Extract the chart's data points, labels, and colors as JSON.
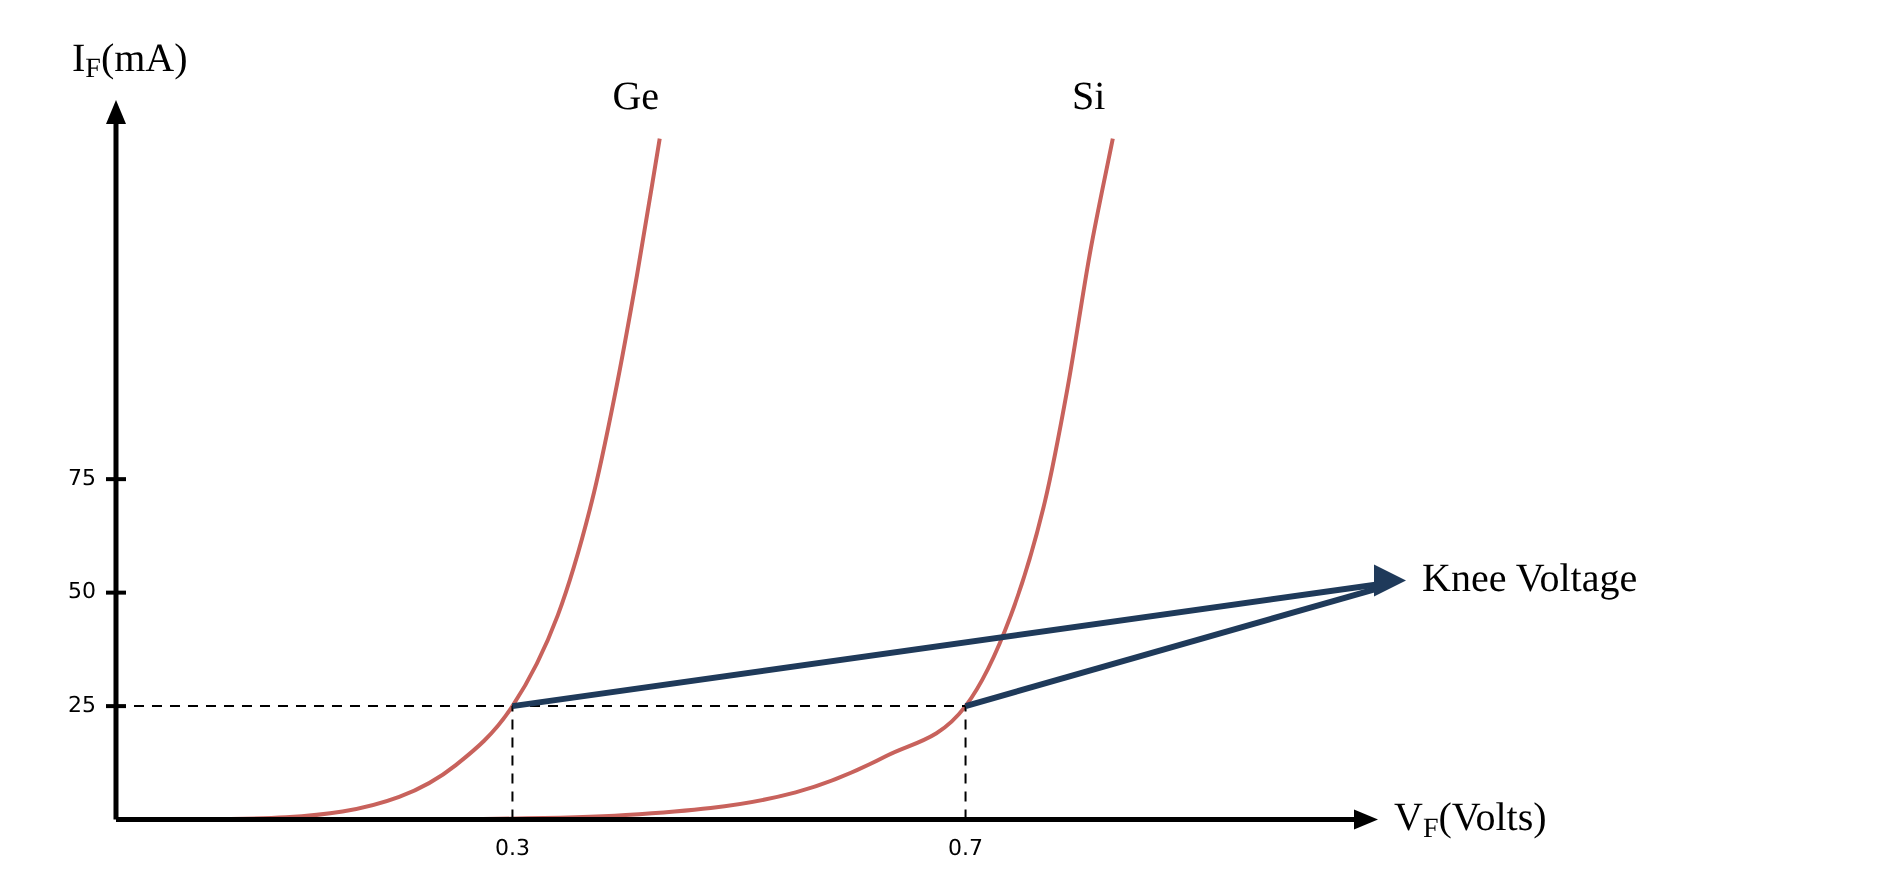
{
  "chart_data": {
    "type": "line",
    "xlabel": "V$_{F}$(Volts)",
    "ylabel": "I$_{F}$(mA)",
    "series": [
      {
        "name": "Ge",
        "color": "#c8625c",
        "x": [
          0,
          0.1,
          0.2,
          0.25,
          0.3,
          0.34,
          0.37,
          0.39,
          0.41,
          0.43
        ],
        "values": [
          0,
          0.5,
          5,
          12,
          25,
          45,
          70,
          93,
          120,
          150
        ]
      },
      {
        "name": "Si",
        "color": "#c8625c",
        "x": [
          0.22,
          0.4,
          0.55,
          0.63,
          0.7,
          0.74,
          0.77,
          0.79,
          0.81,
          0.83
        ],
        "values": [
          0,
          1,
          6,
          14,
          25,
          45,
          70,
          95,
          125,
          150
        ]
      }
    ],
    "xlim": [
      -0.05,
      1.05
    ],
    "ylim": [
      0,
      155
    ],
    "xticks": [
      0.3,
      0.7
    ],
    "yticks": [
      25,
      50,
      75
    ],
    "ref_lines": [
      {
        "axis": "y",
        "value": 25,
        "line_style": "dashed"
      },
      {
        "axis": "x",
        "value": 0.3,
        "line_style": "dashed"
      },
      {
        "axis": "x",
        "value": 0.7,
        "line_style": "dashed"
      }
    ],
    "annotations": [
      {
        "text": "Knee Voltage",
        "x": 0.7,
        "y": 25
      }
    ],
    "grid": false,
    "legend": false,
    "marker": "none",
    "line_style": "solid"
  }
}
